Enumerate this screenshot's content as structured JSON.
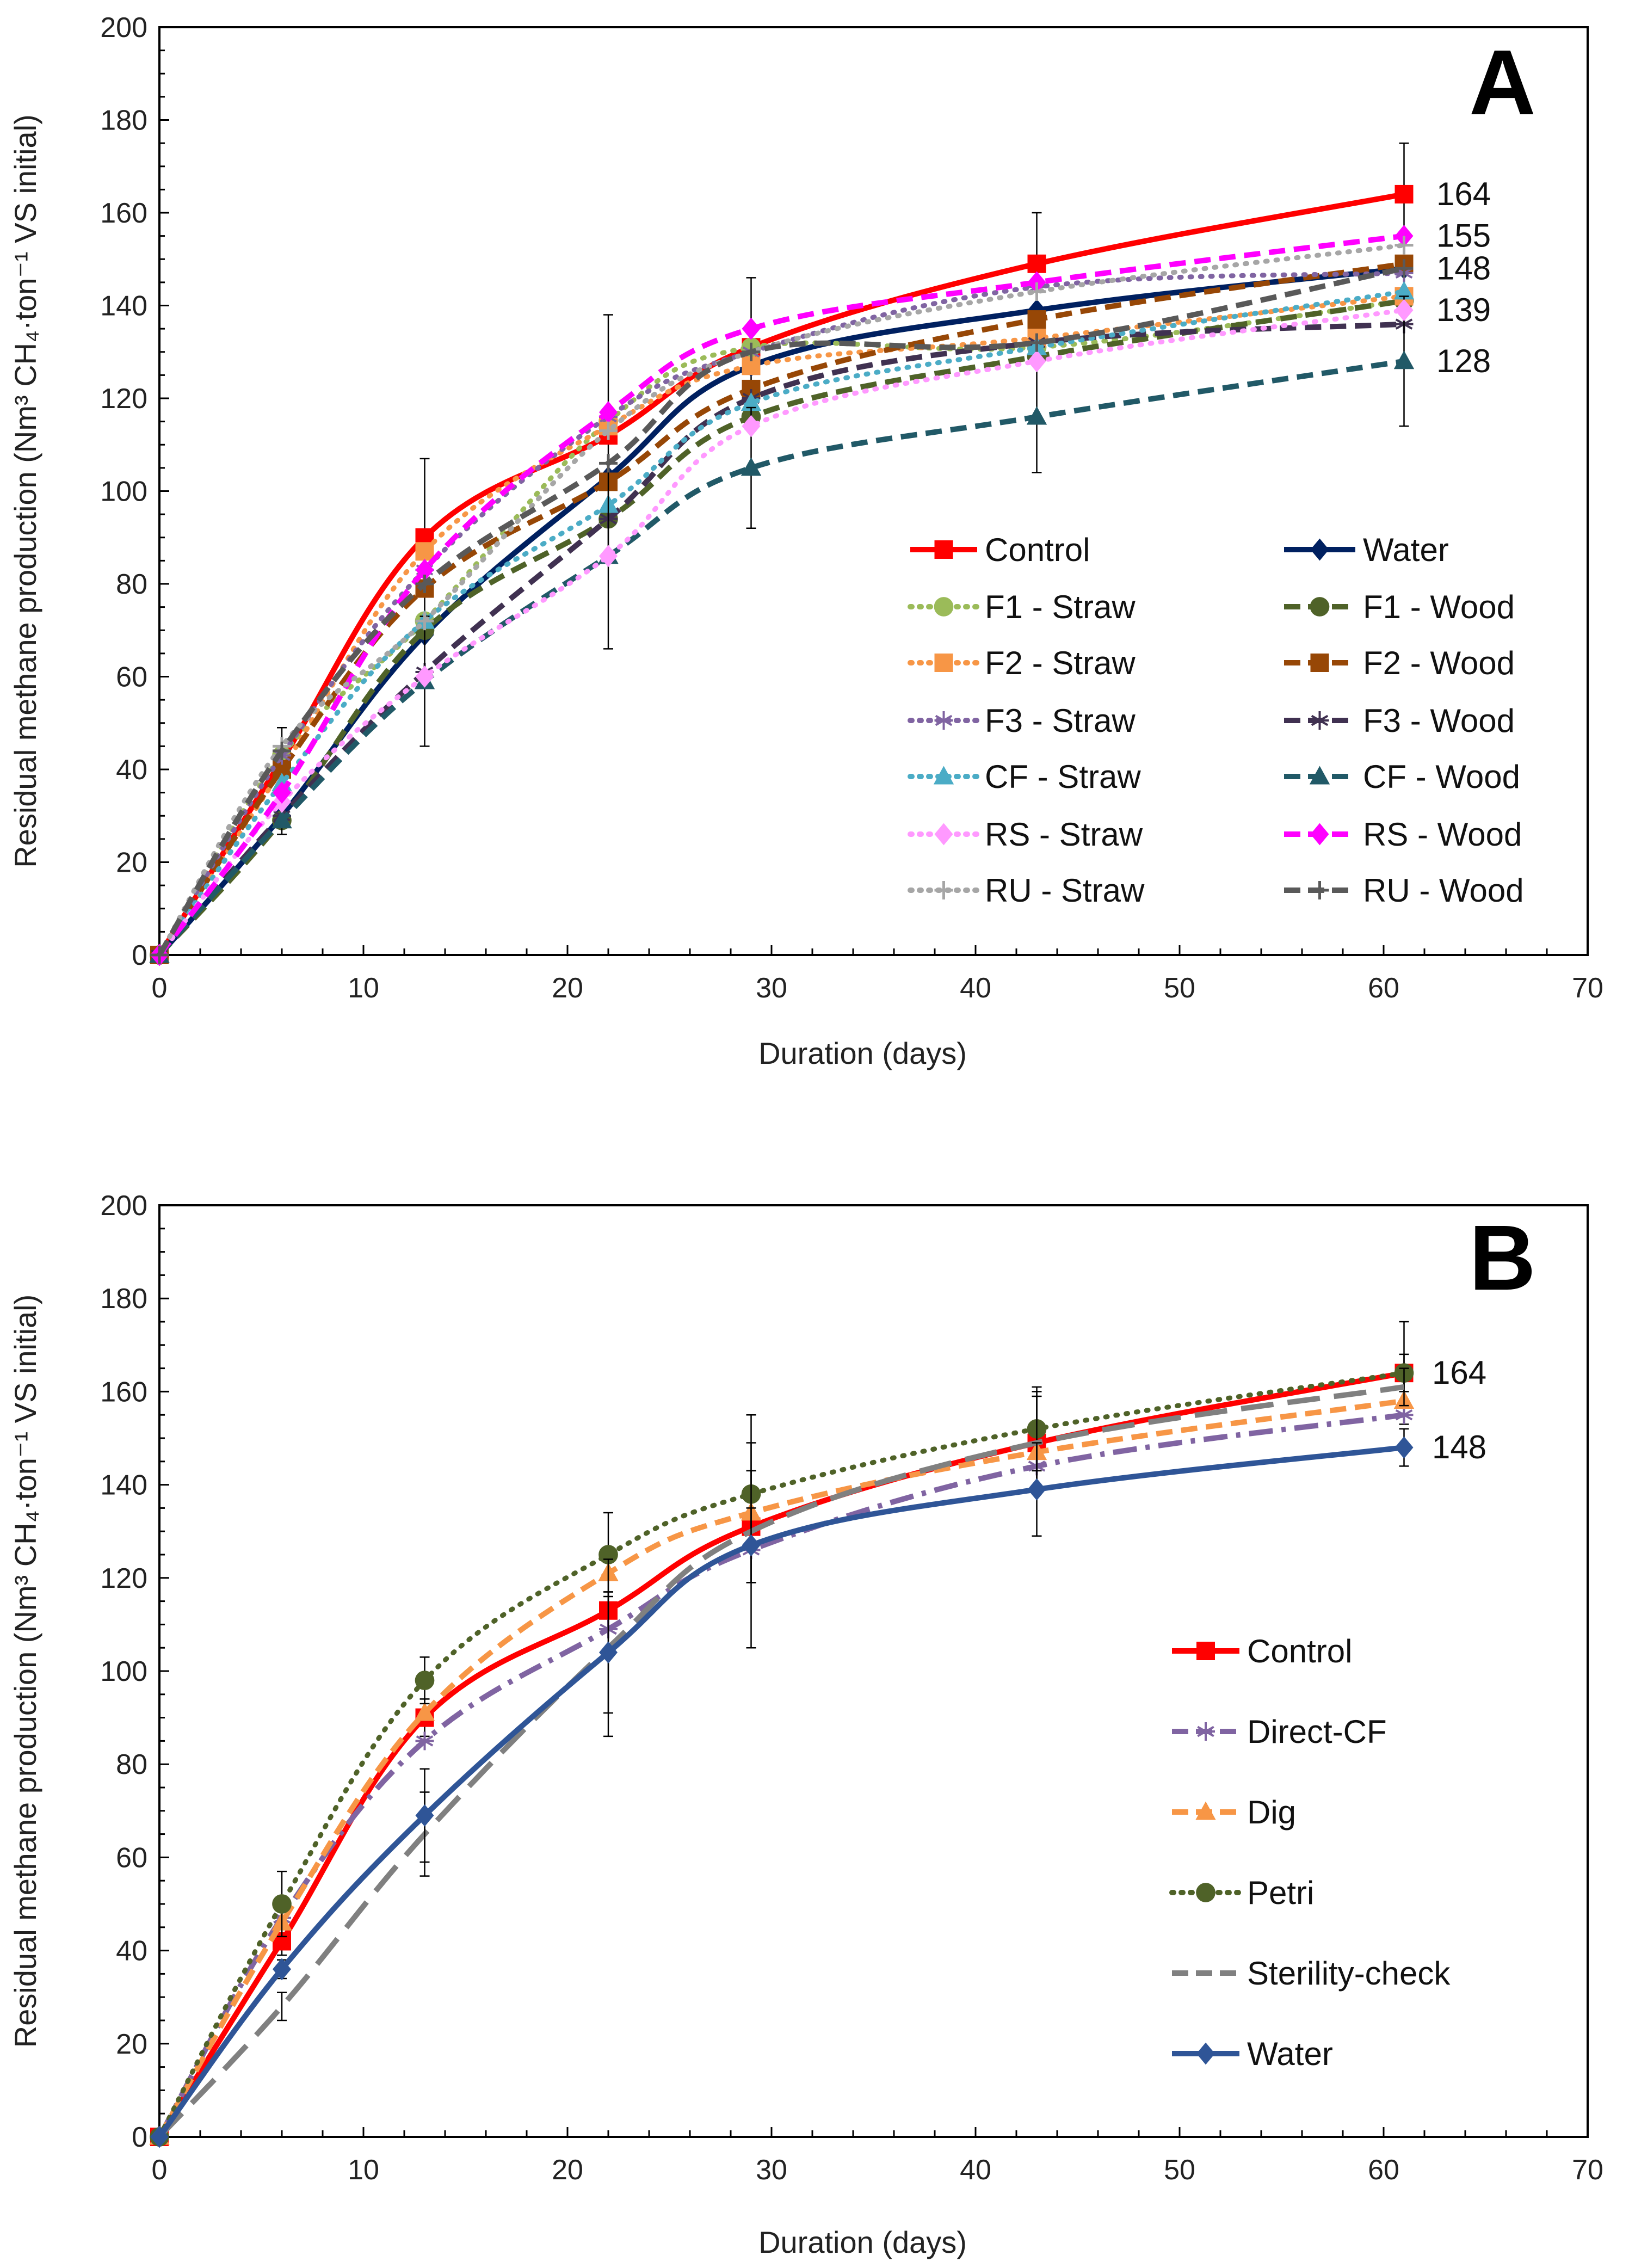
{
  "chart_data": [
    {
      "type": "line",
      "panel_label": "A",
      "xlabel": "Duration (days)",
      "ylabel": "Residual methane production (Nm³ CH₄·ton⁻¹ VS initial)",
      "xlim": [
        0,
        70
      ],
      "ylim": [
        0,
        200
      ],
      "xticks": [
        "0",
        "10",
        "20",
        "30",
        "40",
        "50",
        "60",
        "70"
      ],
      "yticks": [
        "0",
        "20",
        "40",
        "60",
        "80",
        "100",
        "120",
        "140",
        "160",
        "180",
        "200"
      ],
      "legend_placement": "lower-right, two columns",
      "end_labels": [
        "164",
        "155",
        "148",
        "139",
        "128"
      ],
      "end_label_values": [
        164,
        155,
        148,
        139,
        128
      ],
      "x": [
        0,
        6,
        13,
        22,
        29,
        43,
        61
      ],
      "series": [
        {
          "name": "Control",
          "color": "#ff0000",
          "dash": "solid",
          "marker": "square",
          "values": [
            0,
            42,
            90,
            112,
            131,
            149,
            164
          ],
          "err": [
            0,
            7,
            17,
            26,
            15,
            11,
            11
          ]
        },
        {
          "name": "Water",
          "color": "#002060",
          "dash": "solid",
          "marker": "diamond",
          "values": [
            0,
            30,
            69,
            103,
            127,
            139,
            148
          ]
        },
        {
          "name": "F1 - Straw",
          "color": "#9bbb59",
          "dash": "dot",
          "marker": "circle",
          "values": [
            0,
            43,
            72,
            115,
            131,
            131,
            141
          ]
        },
        {
          "name": "F1 - Wood",
          "color": "#4f6228",
          "dash": "dash",
          "marker": "circle",
          "values": [
            0,
            29,
            70,
            94,
            116,
            129,
            141
          ]
        },
        {
          "name": "F2 - Straw",
          "color": "#f79646",
          "dash": "dot",
          "marker": "square",
          "values": [
            0,
            40,
            87,
            114,
            127,
            133,
            142
          ]
        },
        {
          "name": "F2 - Wood",
          "color": "#974706",
          "dash": "dash",
          "marker": "square",
          "values": [
            0,
            40,
            79,
            102,
            122,
            137,
            149
          ]
        },
        {
          "name": "F3 - Straw",
          "color": "#8064a2",
          "dash": "dot",
          "marker": "star",
          "values": [
            0,
            43,
            83,
            116,
            130,
            144,
            147
          ]
        },
        {
          "name": "F3 - Wood",
          "color": "#403151",
          "dash": "dash",
          "marker": "star",
          "values": [
            0,
            30,
            61,
            94,
            120,
            132,
            136
          ]
        },
        {
          "name": "CF - Straw",
          "color": "#4bacc6",
          "dash": "dot",
          "marker": "triangle",
          "values": [
            0,
            37,
            72,
            97,
            119,
            131,
            143
          ]
        },
        {
          "name": "CF - Wood",
          "color": "#215967",
          "dash": "dash",
          "marker": "triangle",
          "values": [
            0,
            29,
            59,
            86,
            105,
            116,
            128
          ],
          "err": [
            0,
            3,
            14,
            20,
            13,
            12,
            14
          ]
        },
        {
          "name": "RS - Straw",
          "color": "#ff99ff",
          "dash": "dot",
          "marker": "diamond",
          "values": [
            0,
            33,
            60,
            86,
            114,
            128,
            139
          ]
        },
        {
          "name": "RS - Wood",
          "color": "#ff00ff",
          "dash": "dash",
          "marker": "diamond",
          "values": [
            0,
            35,
            83,
            117,
            135,
            145,
            155
          ]
        },
        {
          "name": "RU - Straw",
          "color": "#a6a6a6",
          "dash": "dot",
          "marker": "plus",
          "values": [
            0,
            45,
            72,
            113,
            130,
            143,
            153
          ]
        },
        {
          "name": "RU - Wood",
          "color": "#595959",
          "dash": "dash",
          "marker": "plus",
          "values": [
            0,
            44,
            80,
            106,
            130,
            132,
            148
          ]
        }
      ]
    },
    {
      "type": "line",
      "panel_label": "B",
      "xlabel": "Duration (days)",
      "ylabel": "Residual methane production (Nm³ CH₄·ton⁻¹ VS initial)",
      "xlim": [
        0,
        70
      ],
      "ylim": [
        0,
        200
      ],
      "xticks": [
        "0",
        "10",
        "20",
        "30",
        "40",
        "50",
        "60",
        "70"
      ],
      "yticks": [
        "0",
        "20",
        "40",
        "60",
        "80",
        "100",
        "120",
        "140",
        "160",
        "180",
        "200"
      ],
      "legend_placement": "lower-right, one column",
      "end_labels": [
        "164",
        "148"
      ],
      "end_label_values": [
        164,
        148
      ],
      "x": [
        0,
        6,
        13,
        22,
        29,
        43,
        61
      ],
      "series": [
        {
          "name": "Control",
          "color": "#ff0000",
          "dash": "solid",
          "marker": "square",
          "values": [
            0,
            42,
            90,
            113,
            131,
            149,
            164
          ],
          "err": [
            0,
            3,
            4,
            4,
            12,
            11,
            11
          ]
        },
        {
          "name": "Direct-CF",
          "color": "#8064a2",
          "dash": "dashdot",
          "marker": "star",
          "values": [
            0,
            47,
            85,
            109,
            126,
            144,
            155
          ]
        },
        {
          "name": "Dig",
          "color": "#f79646",
          "dash": "dash",
          "marker": "triangle",
          "values": [
            0,
            46,
            91,
            121,
            134,
            147,
            158
          ]
        },
        {
          "name": "Petri",
          "color": "#4f6228",
          "dash": "dot",
          "marker": "circle",
          "values": [
            0,
            50,
            98,
            125,
            138,
            152,
            164
          ],
          "err": [
            0,
            7,
            5,
            9,
            11,
            9,
            4
          ]
        },
        {
          "name": "Sterility-check",
          "color": "#808080",
          "dash": "longdash",
          "marker": "none",
          "values": [
            0,
            28,
            65,
            105,
            130,
            149,
            161
          ],
          "err": [
            0,
            3,
            9,
            19,
            25,
            10,
            4
          ]
        },
        {
          "name": "Water",
          "color": "#2f5597",
          "dash": "solid",
          "marker": "diamond",
          "values": [
            0,
            36,
            69,
            104,
            127,
            139,
            148
          ],
          "err": [
            0,
            2,
            10,
            13,
            8,
            10,
            4
          ]
        }
      ]
    }
  ]
}
